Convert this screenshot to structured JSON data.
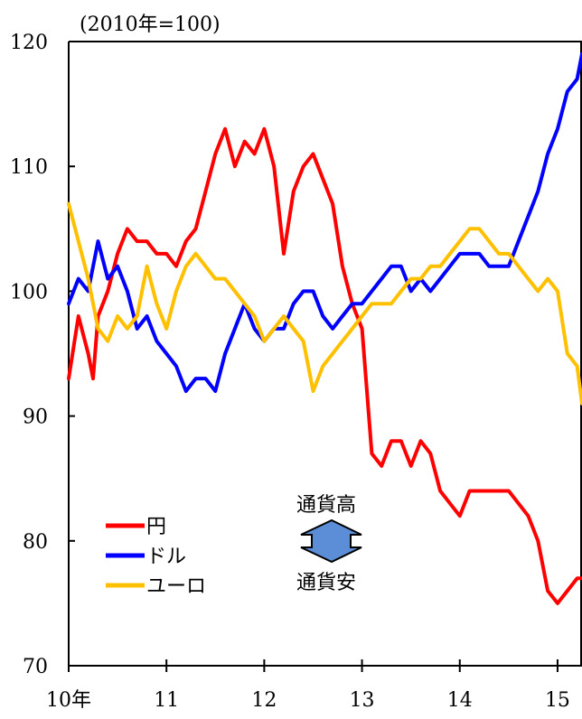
{
  "chart_data": {
    "type": "line",
    "title": "",
    "unit_label": "(2010年=100)",
    "xlabel": "",
    "ylabel": "",
    "ylim": [
      70,
      120
    ],
    "yticks": [
      70,
      80,
      90,
      100,
      110,
      120
    ],
    "xlim": [
      2010,
      2015.25
    ],
    "xticks": [
      {
        "value": 2010,
        "label": "10年"
      },
      {
        "value": 2011,
        "label": "11"
      },
      {
        "value": 2012,
        "label": "12"
      },
      {
        "value": 2013,
        "label": "13"
      },
      {
        "value": 2014,
        "label": "14"
      },
      {
        "value": 2015,
        "label": "15"
      }
    ],
    "grid": false,
    "legend_position": "bottom-left",
    "series": [
      {
        "name": "円",
        "color": "#ff0000",
        "x": [
          2010.0,
          2010.1,
          2010.2,
          2010.25,
          2010.3,
          2010.4,
          2010.5,
          2010.6,
          2010.7,
          2010.8,
          2010.9,
          2011.0,
          2011.1,
          2011.2,
          2011.3,
          2011.4,
          2011.5,
          2011.6,
          2011.7,
          2011.8,
          2011.9,
          2012.0,
          2012.1,
          2012.2,
          2012.3,
          2012.4,
          2012.5,
          2012.6,
          2012.7,
          2012.8,
          2012.9,
          2013.0,
          2013.1,
          2013.2,
          2013.3,
          2013.4,
          2013.5,
          2013.6,
          2013.7,
          2013.8,
          2013.9,
          2014.0,
          2014.1,
          2014.2,
          2014.3,
          2014.4,
          2014.5,
          2014.6,
          2014.7,
          2014.8,
          2014.9,
          2015.0,
          2015.1,
          2015.2,
          2015.25
        ],
        "values": [
          93,
          98,
          95,
          93,
          98,
          100,
          103,
          105,
          104,
          104,
          103,
          103,
          102,
          104,
          105,
          108,
          111,
          113,
          110,
          112,
          111,
          113,
          110,
          103,
          108,
          110,
          111,
          109,
          107,
          102,
          99,
          97,
          87,
          86,
          88,
          88,
          86,
          88,
          87,
          84,
          83,
          82,
          84,
          84,
          84,
          84,
          84,
          83,
          82,
          80,
          76,
          75,
          76,
          77,
          77
        ]
      },
      {
        "name": "ドル",
        "color": "#0000ff",
        "x": [
          2010.0,
          2010.1,
          2010.2,
          2010.3,
          2010.4,
          2010.5,
          2010.6,
          2010.7,
          2010.8,
          2010.9,
          2011.0,
          2011.1,
          2011.2,
          2011.3,
          2011.4,
          2011.5,
          2011.6,
          2011.7,
          2011.8,
          2011.9,
          2012.0,
          2012.1,
          2012.2,
          2012.3,
          2012.4,
          2012.5,
          2012.6,
          2012.7,
          2012.8,
          2012.9,
          2013.0,
          2013.1,
          2013.2,
          2013.3,
          2013.4,
          2013.5,
          2013.6,
          2013.7,
          2013.8,
          2013.9,
          2014.0,
          2014.1,
          2014.2,
          2014.3,
          2014.4,
          2014.5,
          2014.6,
          2014.7,
          2014.8,
          2014.9,
          2015.0,
          2015.1,
          2015.2,
          2015.25
        ],
        "values": [
          99,
          101,
          100,
          104,
          101,
          102,
          100,
          97,
          98,
          96,
          95,
          94,
          92,
          93,
          93,
          92,
          95,
          97,
          99,
          97,
          96,
          97,
          97,
          99,
          100,
          100,
          98,
          97,
          98,
          99,
          99,
          100,
          101,
          102,
          102,
          100,
          101,
          100,
          101,
          102,
          103,
          103,
          103,
          102,
          102,
          102,
          104,
          106,
          108,
          111,
          113,
          116,
          117,
          119
        ]
      },
      {
        "name": "ユーロ",
        "color": "#ffc000",
        "x": [
          2010.0,
          2010.1,
          2010.2,
          2010.3,
          2010.4,
          2010.5,
          2010.6,
          2010.7,
          2010.8,
          2010.9,
          2011.0,
          2011.1,
          2011.2,
          2011.3,
          2011.4,
          2011.5,
          2011.6,
          2011.7,
          2011.8,
          2011.9,
          2012.0,
          2012.1,
          2012.2,
          2012.3,
          2012.4,
          2012.5,
          2012.6,
          2012.7,
          2012.8,
          2012.9,
          2013.0,
          2013.1,
          2013.2,
          2013.3,
          2013.4,
          2013.5,
          2013.6,
          2013.7,
          2013.8,
          2013.9,
          2014.0,
          2014.1,
          2014.2,
          2014.3,
          2014.4,
          2014.5,
          2014.6,
          2014.7,
          2014.8,
          2014.9,
          2015.0,
          2015.1,
          2015.2,
          2015.25
        ],
        "values": [
          107,
          104,
          101,
          97,
          96,
          98,
          97,
          98,
          102,
          99,
          97,
          100,
          102,
          103,
          102,
          101,
          101,
          100,
          99,
          98,
          96,
          97,
          98,
          97,
          96,
          92,
          94,
          95,
          96,
          97,
          98,
          99,
          99,
          99,
          100,
          101,
          101,
          102,
          102,
          103,
          104,
          105,
          105,
          104,
          103,
          103,
          102,
          101,
          100,
          101,
          100,
          95,
          94,
          91
        ]
      }
    ]
  },
  "annotation": {
    "top_label": "通貨高",
    "bottom_label": "通貨安",
    "arrow_color": "#5b8ed6"
  }
}
